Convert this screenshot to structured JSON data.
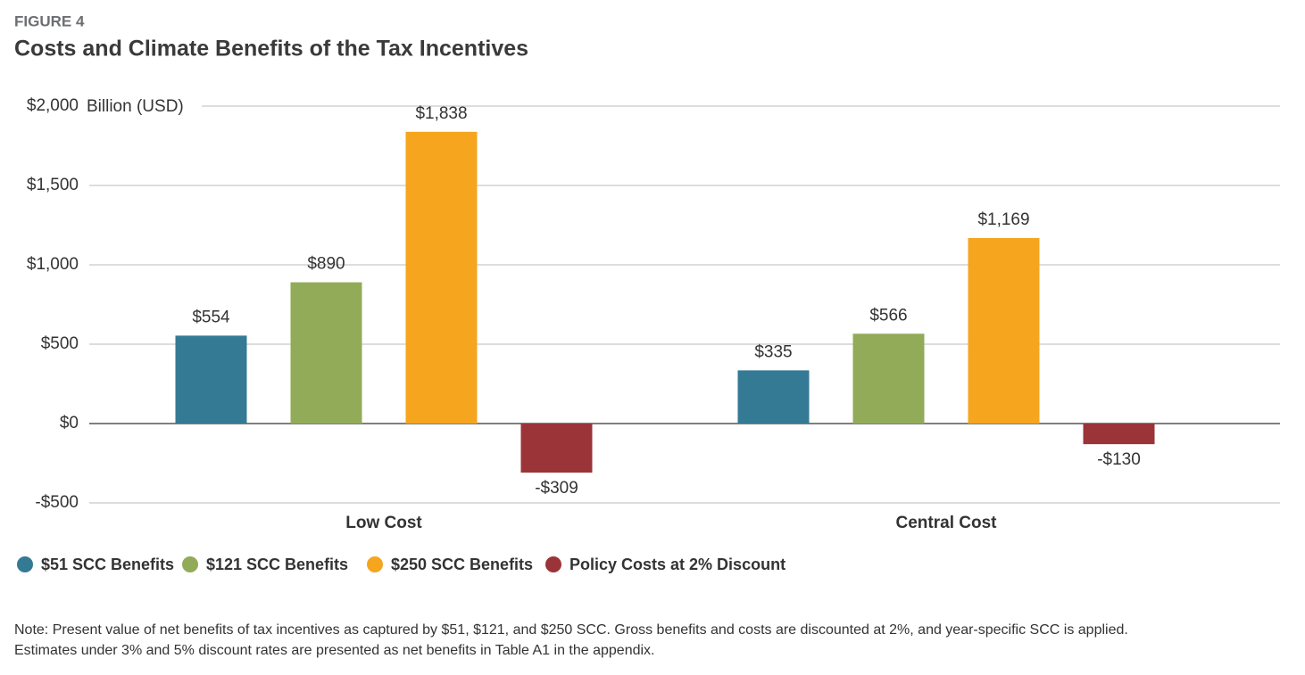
{
  "chart_data": {
    "type": "bar",
    "figure_label": "FIGURE 4",
    "title": "Costs and Climate Benefits of the Tax Incentives",
    "y_axis_label": "Billion (USD)",
    "categories": [
      "Low Cost",
      "Central Cost"
    ],
    "series": [
      {
        "name": "$51 SCC Benefits",
        "color": "#347a94",
        "values": [
          554,
          335
        ],
        "value_labels": [
          "$554",
          "$335"
        ]
      },
      {
        "name": "$121 SCC Benefits",
        "color": "#92ab59",
        "values": [
          890,
          566
        ],
        "value_labels": [
          "$890",
          "$566"
        ]
      },
      {
        "name": "$250 SCC Benefits",
        "color": "#f5a51e",
        "values": [
          1838,
          1169
        ],
        "value_labels": [
          "$1,838",
          "$1,169"
        ]
      },
      {
        "name": "Policy Costs at 2% Discount",
        "color": "#9b3438",
        "values": [
          -309,
          -130
        ],
        "value_labels": [
          "-$309",
          "-$130"
        ]
      }
    ],
    "ylim": [
      -500,
      2000
    ],
    "yticks": [
      {
        "value": 2000,
        "label": "$2,000"
      },
      {
        "value": 1500,
        "label": "$1,500"
      },
      {
        "value": 1000,
        "label": "$1,000"
      },
      {
        "value": 500,
        "label": "$500"
      },
      {
        "value": 0,
        "label": "$0"
      },
      {
        "value": -500,
        "label": "-$500"
      }
    ],
    "grid": true,
    "legend": "bottom",
    "note": [
      "Note: Present value of net benefits of tax incentives as captured by $51, $121, and $250 SCC. Gross benefits and costs are discounted at 2%, and year-specific SCC is applied.",
      "Estimates under 3% and 5% discount rates are presented as net benefits in Table A1 in the appendix."
    ]
  }
}
